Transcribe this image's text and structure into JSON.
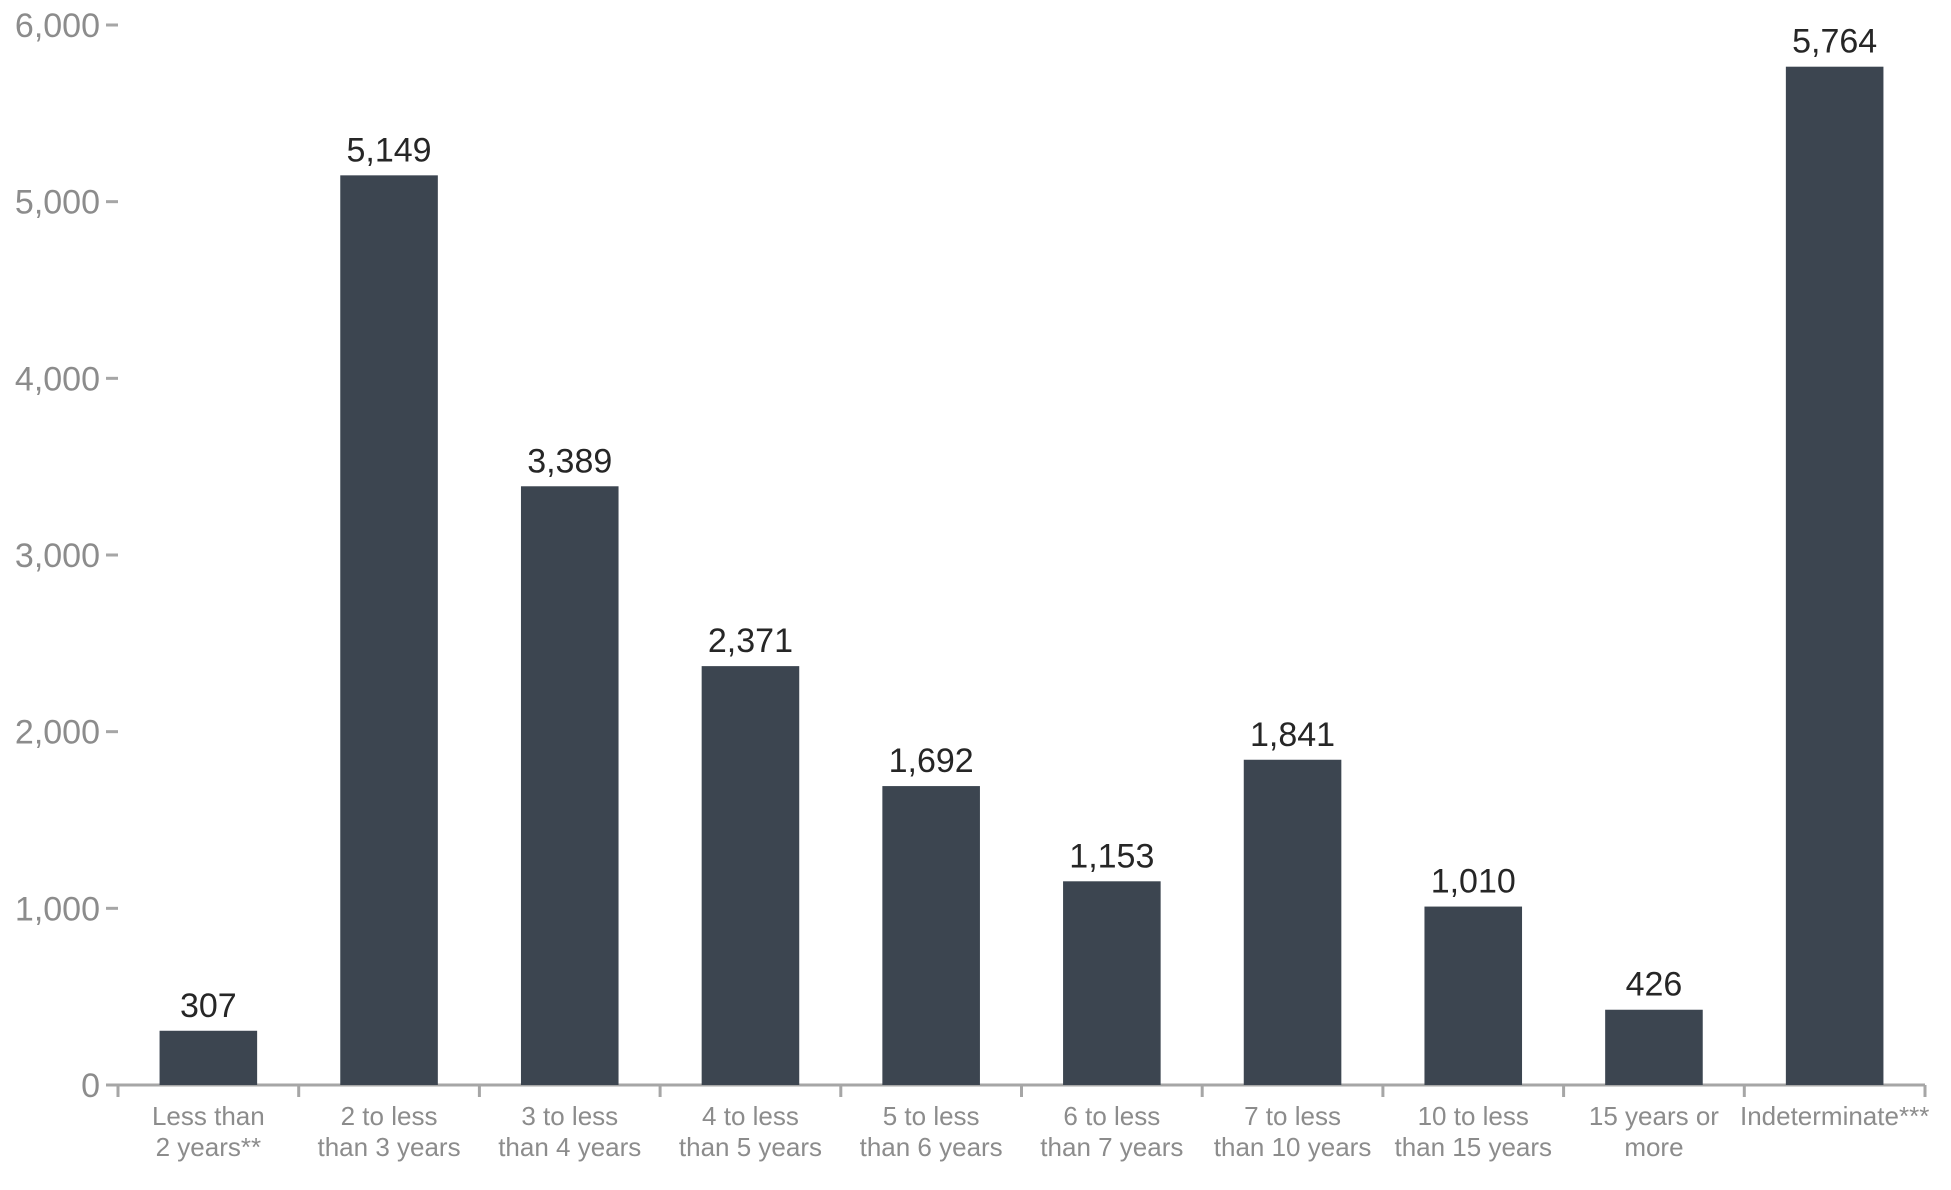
{
  "chart_data": {
    "type": "bar",
    "title": "",
    "xlabel": "",
    "ylabel": "",
    "categories": [
      [
        "Less than",
        "2 years**"
      ],
      [
        "2 to less",
        "than 3 years"
      ],
      [
        "3 to less",
        "than 4 years"
      ],
      [
        "4 to less",
        "than 5 years"
      ],
      [
        "5 to less",
        "than 6 years"
      ],
      [
        "6 to less",
        "than 7 years"
      ],
      [
        "7 to less",
        "than 10 years"
      ],
      [
        "10 to less",
        "than 15 years"
      ],
      [
        "15 years or",
        "more"
      ],
      [
        "Indeterminate***"
      ]
    ],
    "values": [
      307,
      5149,
      3389,
      2371,
      1692,
      1153,
      1841,
      1010,
      426,
      5764
    ],
    "data_labels": [
      "307",
      "5,149",
      "3,389",
      "2,371",
      "1,692",
      "1,153",
      "1,841",
      "1,010",
      "426",
      "5,764"
    ],
    "ylim": [
      0,
      6000
    ],
    "yticks": [
      0,
      1000,
      2000,
      3000,
      4000,
      5000,
      6000
    ],
    "ytick_labels": [
      "0",
      "1,000",
      "2,000",
      "3,000",
      "4,000",
      "5,000",
      "6,000"
    ],
    "bar_color": "#3c4550",
    "axis_color": "#a6a6a6",
    "tick_label_color": "#8c8c8c",
    "data_label_color": "#262626",
    "grid": false,
    "legend": "none"
  }
}
